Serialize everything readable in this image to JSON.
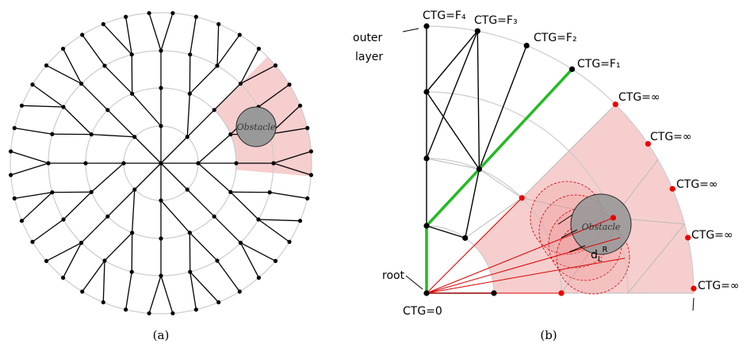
{
  "panel_a": {
    "obstacle": "Obstacle",
    "caption": "(a)"
  },
  "panel_b": {
    "labels": [
      "CTG=F₄",
      "CTG=F₃",
      "CTG=F₂",
      "CTG=F₁",
      "CTG=∞",
      "CTG=∞",
      "CTG=∞",
      "CTG=∞",
      "CTG=∞"
    ],
    "outer_layer": [
      "outer",
      "layer"
    ],
    "root": "root",
    "root_ctg": "CTG=0",
    "obstacle": "Obstacle",
    "distance": {
      "base": "d",
      "sub": "L",
      "sup": "R"
    },
    "caption": "(b)"
  }
}
